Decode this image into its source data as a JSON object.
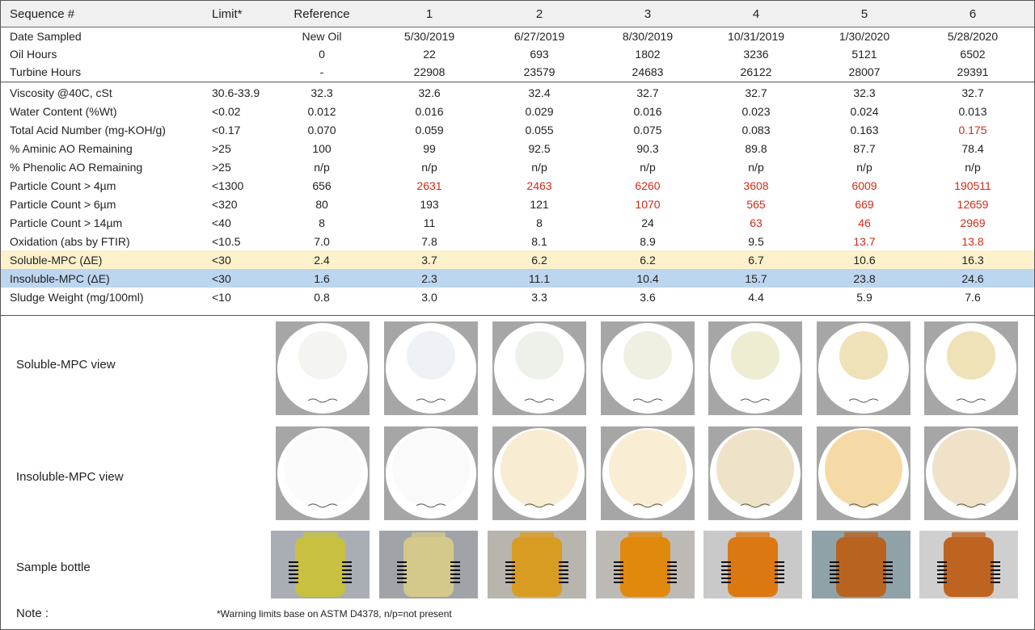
{
  "header": {
    "name": "Sequence #",
    "limit": "Limit*",
    "columns": [
      "Reference",
      "1",
      "2",
      "3",
      "4",
      "5",
      "6"
    ]
  },
  "meta_rows": [
    {
      "name": "Date Sampled",
      "limit": "",
      "values": [
        "New Oil",
        "5/30/2019",
        "6/27/2019",
        "8/30/2019",
        "10/31/2019",
        "1/30/2020",
        "5/28/2020"
      ]
    },
    {
      "name": "Oil Hours",
      "limit": "",
      "values": [
        "0",
        "22",
        "693",
        "1802",
        "3236",
        "5121",
        "6502"
      ]
    },
    {
      "name": "Turbine Hours",
      "limit": "",
      "values": [
        "-",
        "22908",
        "23579",
        "24683",
        "26122",
        "28007",
        "29391"
      ]
    }
  ],
  "test_rows": [
    {
      "name": "Viscosity @40C, cSt",
      "limit": "30.6-33.9",
      "values": [
        "32.3",
        "32.6",
        "32.4",
        "32.7",
        "32.7",
        "32.3",
        "32.7"
      ],
      "warn": [
        false,
        false,
        false,
        false,
        false,
        false,
        false
      ]
    },
    {
      "name": "Water Content (%Wt)",
      "limit": "<0.02",
      "values": [
        "0.012",
        "0.016",
        "0.029",
        "0.016",
        "0.023",
        "0.024",
        "0.013"
      ],
      "warn": [
        false,
        false,
        false,
        false,
        false,
        false,
        false
      ]
    },
    {
      "name": "Total Acid Number (mg-KOH/g)",
      "limit": "<0.17",
      "values": [
        "0.070",
        "0.059",
        "0.055",
        "0.075",
        "0.083",
        "0.163",
        "0.175"
      ],
      "warn": [
        false,
        false,
        false,
        false,
        false,
        false,
        true
      ]
    },
    {
      "name": "% Aminic AO Remaining",
      "limit": ">25",
      "values": [
        "100",
        "99",
        "92.5",
        "90.3",
        "89.8",
        "87.7",
        "78.4"
      ],
      "warn": [
        false,
        false,
        false,
        false,
        false,
        false,
        false
      ]
    },
    {
      "name": "% Phenolic AO Remaining",
      "limit": ">25",
      "values": [
        "n/p",
        "n/p",
        "n/p",
        "n/p",
        "n/p",
        "n/p",
        "n/p"
      ],
      "warn": [
        false,
        false,
        false,
        false,
        false,
        false,
        false
      ]
    },
    {
      "name": "Particle Count > 4µm",
      "limit": "<1300",
      "values": [
        "656",
        "2631",
        "2463",
        "6260",
        "3608",
        "6009",
        "190511"
      ],
      "warn": [
        false,
        true,
        true,
        true,
        true,
        true,
        true
      ]
    },
    {
      "name": "Particle Count > 6µm",
      "limit": "<320",
      "values": [
        "80",
        "193",
        "121",
        "1070",
        "565",
        "669",
        "12659"
      ],
      "warn": [
        false,
        false,
        false,
        true,
        true,
        true,
        true
      ]
    },
    {
      "name": "Particle Count > 14µm",
      "limit": "<40",
      "values": [
        "8",
        "11",
        "8",
        "24",
        "63",
        "46",
        "2969"
      ],
      "warn": [
        false,
        false,
        false,
        false,
        true,
        true,
        true
      ]
    },
    {
      "name": "Oxidation (abs by FTIR)",
      "limit": "<10.5",
      "values": [
        "7.0",
        "7.8",
        "8.1",
        "8.9",
        "9.5",
        "13.7",
        "13.8"
      ],
      "warn": [
        false,
        false,
        false,
        false,
        false,
        true,
        true
      ]
    },
    {
      "name": "Soluble-MPC (ΔE)",
      "limit": "<30",
      "values": [
        "2.4",
        "3.7",
        "6.2",
        "6.2",
        "6.7",
        "10.6",
        "16.3"
      ],
      "warn": [
        false,
        false,
        false,
        false,
        false,
        false,
        false
      ],
      "highlight": "yellow"
    },
    {
      "name": "Insoluble-MPC (ΔE)",
      "limit": "<30",
      "values": [
        "1.6",
        "2.3",
        "11.1",
        "10.4",
        "15.7",
        "23.8",
        "24.6"
      ],
      "warn": [
        false,
        false,
        false,
        false,
        false,
        false,
        false
      ],
      "highlight": "blue"
    },
    {
      "name": "Sludge Weight (mg/100ml)",
      "limit": "<10",
      "values": [
        "0.8",
        "3.0",
        "3.3",
        "3.6",
        "4.4",
        "5.9",
        "7.6"
      ],
      "warn": [
        false,
        false,
        false,
        false,
        false,
        false,
        false
      ]
    }
  ],
  "image_rows": {
    "soluble": {
      "label": "Soluble-MPC view",
      "stain_colors": [
        "#f4f4f0",
        "#eef1f6",
        "#eef1ea",
        "#eff0e2",
        "#eeedd2",
        "#efe2b8",
        "#efe2b6"
      ]
    },
    "insoluble": {
      "label": "Insoluble-MPC view",
      "stain_colors": [
        "#fbfbfb",
        "#fafafa",
        "#f8ecd2",
        "#f9edd4",
        "#eee3c8",
        "#f5d9a6",
        "#efe2c9"
      ]
    },
    "bottle": {
      "label": "Sample bottle",
      "oil_colors": [
        "#c8c040",
        "#d4c98a",
        "#d99c22",
        "#e1890c",
        "#dc7812",
        "#b86420",
        "#bf6420"
      ],
      "bg_colors": [
        "#a9aeb5",
        "#a0a4a8",
        "#b8b4ae",
        "#bdbab6",
        "#c9c9c9",
        "#8fa2a8",
        "#cfcfcf"
      ]
    }
  },
  "note": {
    "label": "Note :",
    "text": "*Warning limits base on ASTM D4378, n/p=not present"
  },
  "colors": {
    "warning": "#d42a17",
    "soluble_highlight": "#fdf1cc",
    "insoluble_highlight": "#bcd6f0"
  }
}
